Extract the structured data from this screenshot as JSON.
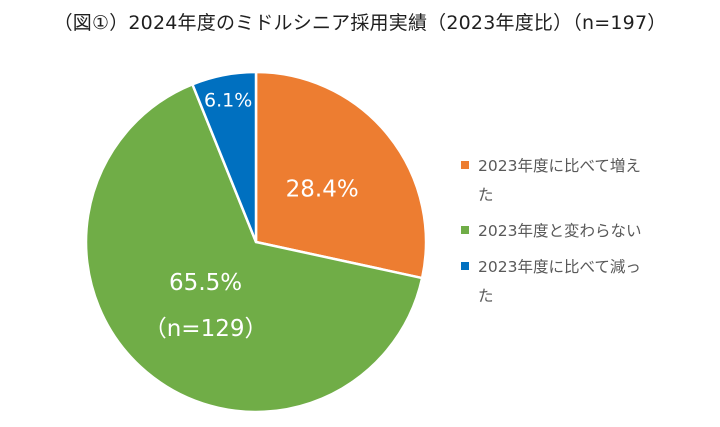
{
  "title": "（図①）2024年度のミドルシニア採用実績（2023年度比）（n=197）",
  "chart_data": {
    "type": "pie",
    "title": "（図①）2024年度のミドルシニア採用実績（2023年度比）（n=197）",
    "start_angle_deg": 0,
    "direction": "clockwise",
    "legend_position": "right",
    "slices": [
      {
        "name": "2023年度に比べて増えた",
        "value": 28.4,
        "label": "28.4%",
        "color": "#ED7D31"
      },
      {
        "name": "2023年度と変わらない",
        "value": 65.5,
        "label": "65.5%",
        "sublabel": "（n=129）",
        "color": "#70AD47"
      },
      {
        "name": "2023年度に比べて減った",
        "value": 6.1,
        "label": "6.1%",
        "color": "#0070C0"
      }
    ]
  }
}
